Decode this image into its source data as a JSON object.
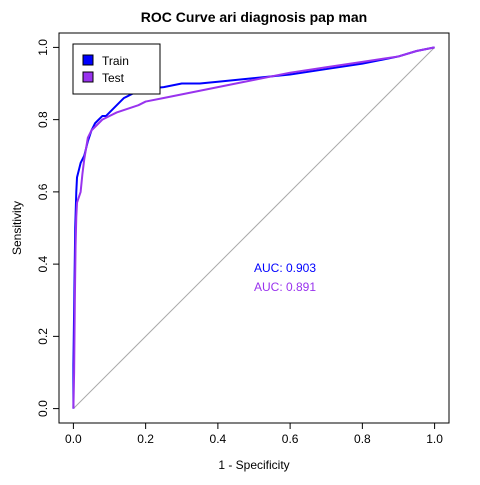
{
  "chart_data": {
    "type": "line",
    "title": "ROC Curve ari diagnosis pap man",
    "xlabel": "1 - Specificity",
    "ylabel": "Sensitivity",
    "xlim": [
      0,
      1
    ],
    "ylim": [
      0,
      1
    ],
    "x_ticks": [
      0.0,
      0.2,
      0.4,
      0.6,
      0.8,
      1.0
    ],
    "x_tick_labels": [
      "0.0",
      "0.2",
      "0.4",
      "0.6",
      "0.8",
      "1.0"
    ],
    "y_ticks": [
      0.0,
      0.2,
      0.4,
      0.6,
      0.8,
      1.0
    ],
    "y_tick_labels": [
      "0.0",
      "0.2",
      "0.4",
      "0.6",
      "0.8",
      "1.0"
    ],
    "grid": false,
    "legend_position": "top-left",
    "reference_line": {
      "x": [
        0,
        1
      ],
      "y": [
        0,
        1
      ],
      "color": "#aaaaaa"
    },
    "series": [
      {
        "name": "Train",
        "color": "#0000ff",
        "auc_label": "AUC: 0.903",
        "x": [
          0.0,
          0.0,
          0.003,
          0.005,
          0.008,
          0.01,
          0.015,
          0.02,
          0.03,
          0.04,
          0.05,
          0.06,
          0.07,
          0.08,
          0.09,
          0.1,
          0.12,
          0.14,
          0.16,
          0.18,
          0.2,
          0.25,
          0.3,
          0.35,
          0.4,
          0.5,
          0.6,
          0.7,
          0.8,
          0.9,
          0.95,
          1.0
        ],
        "y": [
          0.0,
          0.12,
          0.35,
          0.5,
          0.6,
          0.64,
          0.66,
          0.68,
          0.7,
          0.74,
          0.77,
          0.79,
          0.8,
          0.81,
          0.81,
          0.82,
          0.84,
          0.86,
          0.87,
          0.88,
          0.885,
          0.89,
          0.9,
          0.9,
          0.905,
          0.915,
          0.925,
          0.94,
          0.955,
          0.975,
          0.99,
          1.0
        ]
      },
      {
        "name": "Test",
        "color": "#9933ee",
        "auc_label": "AUC: 0.891",
        "x": [
          0.0,
          0.002,
          0.004,
          0.006,
          0.008,
          0.01,
          0.02,
          0.025,
          0.03,
          0.035,
          0.04,
          0.05,
          0.06,
          0.07,
          0.08,
          0.1,
          0.12,
          0.15,
          0.18,
          0.2,
          0.25,
          0.3,
          0.35,
          0.4,
          0.5,
          0.6,
          0.7,
          0.8,
          0.9,
          0.95,
          1.0
        ],
        "y": [
          0.0,
          0.1,
          0.3,
          0.45,
          0.53,
          0.57,
          0.6,
          0.65,
          0.69,
          0.72,
          0.75,
          0.77,
          0.78,
          0.79,
          0.8,
          0.81,
          0.82,
          0.83,
          0.84,
          0.85,
          0.86,
          0.87,
          0.88,
          0.89,
          0.91,
          0.93,
          0.945,
          0.96,
          0.975,
          0.99,
          1.0
        ]
      }
    ]
  }
}
